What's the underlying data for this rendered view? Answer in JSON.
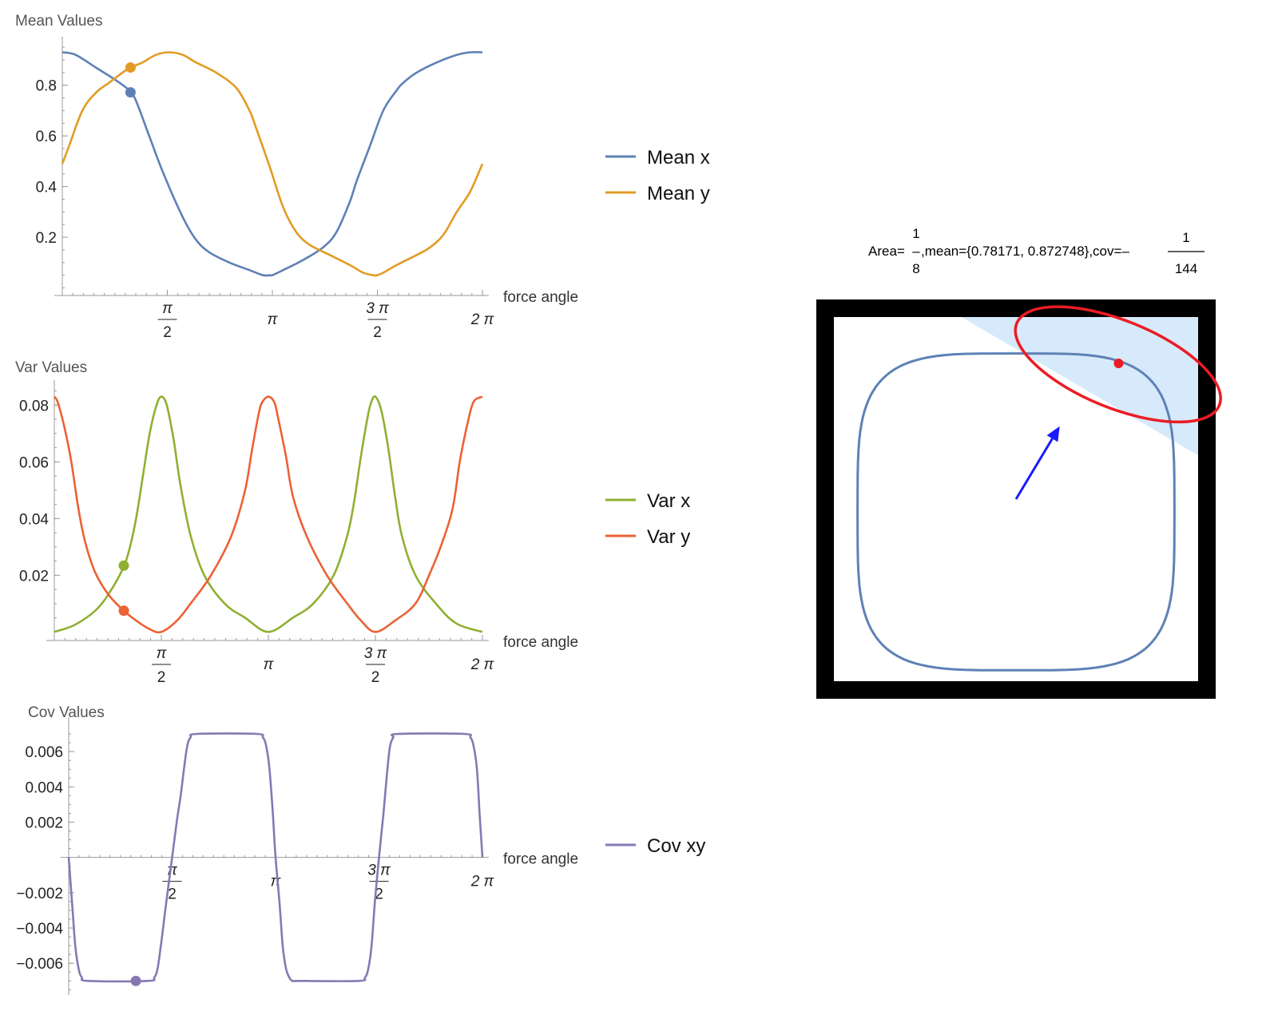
{
  "colors": {
    "mean_x": "#5e81b5",
    "mean_y": "#e19c24",
    "var_x": "#8fb032",
    "var_y": "#eb6235",
    "cov_xy": "#8778b3",
    "ellipse": "#ec1c24",
    "arrow": "#1a1aff",
    "region": "#d6eafb",
    "frame": "#000000"
  },
  "chart_data": [
    {
      "type": "line",
      "title": "Mean Values",
      "xlabel": "force angle",
      "xlim": [
        0,
        6.2832
      ],
      "ylim": [
        -0.03,
        0.96
      ],
      "x_ticks": [
        {
          "value": 1.5708,
          "num": "π",
          "den": "2"
        },
        {
          "value": 3.1416,
          "label": "π"
        },
        {
          "value": 4.7124,
          "num": "3 π",
          "den": "2"
        },
        {
          "value": 6.2832,
          "label": "2 π"
        }
      ],
      "y_ticks": [
        0.2,
        0.4,
        0.6,
        0.8
      ],
      "y_tick_labels": [
        "0.2",
        "0.4",
        "0.6",
        "0.8"
      ],
      "marker_x": 1.02,
      "series": [
        {
          "name": "Mean x",
          "color_key": "mean_x",
          "x": [
            0,
            0.2,
            0.5,
            0.8,
            1.0,
            1.1,
            1.3,
            1.5,
            1.8,
            2.0,
            2.2,
            2.5,
            2.8,
            3.0,
            3.1,
            3.14,
            3.3,
            3.6,
            3.9,
            4.1,
            4.3,
            4.4,
            4.6,
            4.8,
            5.0,
            5.1,
            5.3,
            5.6,
            5.9,
            6.1,
            6.2832
          ],
          "y": [
            0.93,
            0.92,
            0.87,
            0.82,
            0.78,
            0.74,
            0.6,
            0.46,
            0.28,
            0.19,
            0.14,
            0.1,
            0.07,
            0.05,
            0.05,
            0.05,
            0.07,
            0.11,
            0.16,
            0.22,
            0.34,
            0.42,
            0.56,
            0.7,
            0.78,
            0.81,
            0.85,
            0.89,
            0.92,
            0.93,
            0.93
          ]
        },
        {
          "name": "Mean y",
          "color_key": "mean_y",
          "x": [
            0,
            0.1,
            0.3,
            0.5,
            0.7,
            0.9,
            1.02,
            1.2,
            1.4,
            1.6,
            1.8,
            2.0,
            2.3,
            2.6,
            2.8,
            2.9,
            3.1,
            3.3,
            3.5,
            3.7,
            4.0,
            4.3,
            4.5,
            4.65,
            4.71,
            4.8,
            5.0,
            5.3,
            5.5,
            5.7,
            5.9,
            6.1,
            6.2832
          ],
          "y": [
            0.49,
            0.56,
            0.7,
            0.77,
            0.81,
            0.85,
            0.87,
            0.89,
            0.92,
            0.93,
            0.92,
            0.89,
            0.85,
            0.79,
            0.7,
            0.63,
            0.48,
            0.32,
            0.22,
            0.17,
            0.13,
            0.09,
            0.06,
            0.05,
            0.05,
            0.06,
            0.09,
            0.13,
            0.16,
            0.21,
            0.3,
            0.38,
            0.49
          ]
        }
      ]
    },
    {
      "type": "line",
      "title": "Var Values",
      "xlabel": "force angle",
      "xlim": [
        0,
        6.2832
      ],
      "ylim": [
        -0.003,
        0.086
      ],
      "x_ticks": [
        {
          "value": 1.5708,
          "num": "π",
          "den": "2"
        },
        {
          "value": 3.1416,
          "label": "π"
        },
        {
          "value": 4.7124,
          "num": "3 π",
          "den": "2"
        },
        {
          "value": 6.2832,
          "label": "2 π"
        }
      ],
      "y_ticks": [
        0.02,
        0.04,
        0.06,
        0.08
      ],
      "y_tick_labels": [
        "0.02",
        "0.04",
        "0.06",
        "0.08"
      ],
      "marker_x": 1.02,
      "series": [
        {
          "name": "Var x",
          "color_key": "var_x",
          "x": [
            0,
            0.3,
            0.6,
            0.8,
            1.0,
            1.1,
            1.2,
            1.3,
            1.4,
            1.5,
            1.5708,
            1.65,
            1.75,
            1.85,
            2.0,
            2.2,
            2.5,
            2.8,
            3.1416,
            3.5,
            3.8,
            4.1,
            4.3,
            4.4,
            4.5,
            4.6,
            4.65,
            4.7124,
            4.8,
            4.9,
            5.0,
            5.1,
            5.3,
            5.6,
            5.9,
            6.2832
          ],
          "y": [
            0.0,
            0.0025,
            0.0075,
            0.0135,
            0.022,
            0.029,
            0.04,
            0.055,
            0.07,
            0.08,
            0.083,
            0.08,
            0.068,
            0.052,
            0.034,
            0.02,
            0.01,
            0.005,
            0.0,
            0.005,
            0.01,
            0.02,
            0.034,
            0.046,
            0.062,
            0.076,
            0.081,
            0.083,
            0.078,
            0.065,
            0.048,
            0.034,
            0.02,
            0.01,
            0.003,
            0.0
          ]
        },
        {
          "name": "Var y",
          "color_key": "var_y",
          "x": [
            0,
            0.05,
            0.15,
            0.25,
            0.35,
            0.45,
            0.6,
            0.8,
            1.02,
            1.2,
            1.4,
            1.5708,
            1.8,
            2.0,
            2.3,
            2.6,
            2.8,
            2.9,
            3.0,
            3.05,
            3.1416,
            3.23,
            3.28,
            3.4,
            3.5,
            3.7,
            4.0,
            4.3,
            4.5,
            4.7124,
            5.0,
            5.3,
            5.5,
            5.7,
            5.85,
            5.95,
            6.05,
            6.15,
            6.2832
          ],
          "y": [
            0.083,
            0.081,
            0.072,
            0.06,
            0.044,
            0.032,
            0.021,
            0.013,
            0.0075,
            0.004,
            0.001,
            0.0,
            0.004,
            0.01,
            0.02,
            0.034,
            0.05,
            0.064,
            0.077,
            0.081,
            0.083,
            0.081,
            0.076,
            0.062,
            0.048,
            0.034,
            0.02,
            0.01,
            0.004,
            0.0,
            0.004,
            0.01,
            0.02,
            0.032,
            0.044,
            0.06,
            0.072,
            0.081,
            0.083
          ]
        }
      ]
    },
    {
      "type": "line",
      "title": "Cov Values",
      "xlabel": "force angle",
      "xlim": [
        0,
        6.2832
      ],
      "ylim": [
        -0.0078,
        0.0075
      ],
      "x_ticks": [
        {
          "value": 1.5708,
          "num": "π",
          "den": "2"
        },
        {
          "value": 3.1416,
          "label": "π"
        },
        {
          "value": 4.7124,
          "num": "3 π",
          "den": "2"
        },
        {
          "value": 6.2832,
          "label": "2 π"
        }
      ],
      "y_ticks": [
        -0.006,
        -0.004,
        -0.002,
        0.002,
        0.004,
        0.006
      ],
      "y_tick_labels": [
        "−0.006",
        "−0.004",
        "−0.002",
        "0.002",
        "0.004",
        "0.006"
      ],
      "marker_x": 1.02,
      "series": [
        {
          "name": "Cov xy",
          "color_key": "cov_xy",
          "x": [
            0,
            0.05,
            0.1,
            0.15,
            0.2,
            0.3,
            1.2,
            1.3,
            1.35,
            1.4,
            1.45,
            1.5,
            1.5708,
            1.64,
            1.7,
            1.75,
            1.8,
            1.85,
            1.95,
            2.85,
            2.95,
            3.0,
            3.05,
            3.1,
            3.1416,
            3.2,
            3.25,
            3.3,
            3.35,
            3.4,
            3.5,
            4.4,
            4.5,
            4.55,
            4.6,
            4.65,
            4.7124,
            4.78,
            4.84,
            4.88,
            4.93,
            5.0,
            6.0,
            6.1,
            6.15,
            6.2,
            6.24,
            6.2832
          ],
          "y": [
            0.0,
            -0.0025,
            -0.005,
            -0.0063,
            -0.0068,
            -0.007,
            -0.007,
            -0.0068,
            -0.0063,
            -0.005,
            -0.0035,
            -0.002,
            0.0,
            0.002,
            0.0035,
            0.005,
            0.0063,
            0.0068,
            0.007,
            0.007,
            0.0068,
            0.0063,
            0.005,
            0.0025,
            0.0,
            -0.0025,
            -0.005,
            -0.0063,
            -0.0068,
            -0.007,
            -0.007,
            -0.007,
            -0.0068,
            -0.0063,
            -0.005,
            -0.0025,
            0.0,
            0.0025,
            0.005,
            0.0063,
            0.0068,
            0.007,
            0.007,
            0.0068,
            0.0063,
            0.005,
            0.0025,
            0.0
          ]
        }
      ]
    }
  ],
  "right_panel": {
    "caption_parts": {
      "area_prefix": "Area=",
      "area_num": "1",
      "area_dash": "–",
      "area_den": "8",
      "mean_text": ",mean={0.78171, 0.872748},cov=–",
      "cov_num": "1",
      "cov_den": "144"
    },
    "domain": {
      "xlim": [
        0,
        1
      ],
      "ylim": [
        0,
        1
      ]
    },
    "region_polygon": [
      [
        0.35,
        1.0
      ],
      [
        1.0,
        1.0
      ],
      [
        1.0,
        0.62
      ]
    ],
    "mean_point": [
      0.78171,
      0.872748
    ],
    "arrow": {
      "from": [
        0.5,
        0.5
      ],
      "to": [
        0.62,
        0.7
      ]
    },
    "ellipse": {
      "center": [
        0.78,
        0.87
      ],
      "rx": 0.3,
      "ry": 0.12,
      "angle_deg": 22
    },
    "curve_note": "closed squircle path traced by the mean point"
  }
}
